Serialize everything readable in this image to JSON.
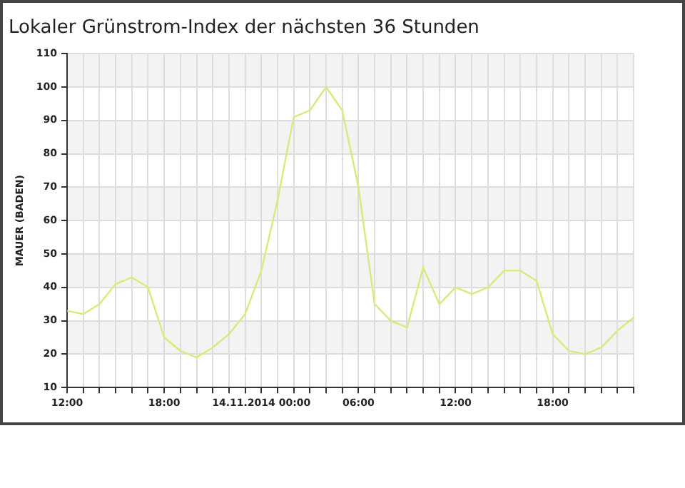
{
  "chart_data": {
    "type": "line",
    "title": "Lokaler Grünstrom-Index der nächsten 36 Stunden",
    "ylabel": "MAUER (BADEN)",
    "x": [
      "2014-11-13T12:00",
      "2014-11-13T13:00",
      "2014-11-13T14:00",
      "2014-11-13T15:00",
      "2014-11-13T16:00",
      "2014-11-13T17:00",
      "2014-11-13T18:00",
      "2014-11-13T19:00",
      "2014-11-13T20:00",
      "2014-11-13T21:00",
      "2014-11-13T22:00",
      "2014-11-13T23:00",
      "2014-11-14T00:00",
      "2014-11-14T01:00",
      "2014-11-14T02:00",
      "2014-11-14T03:00",
      "2014-11-14T04:00",
      "2014-11-14T05:00",
      "2014-11-14T06:00",
      "2014-11-14T07:00",
      "2014-11-14T08:00",
      "2014-11-14T09:00",
      "2014-11-14T10:00",
      "2014-11-14T11:00",
      "2014-11-14T12:00",
      "2014-11-14T13:00",
      "2014-11-14T14:00",
      "2014-11-14T15:00",
      "2014-11-14T16:00",
      "2014-11-14T17:00",
      "2014-11-14T18:00",
      "2014-11-14T19:00",
      "2014-11-14T20:00",
      "2014-11-14T21:00",
      "2014-11-14T22:00",
      "2014-11-14T23:00"
    ],
    "series": [
      {
        "color": "#d4ec7a",
        "values": [
          33,
          32,
          35,
          41,
          43,
          40,
          25,
          21,
          19,
          22,
          26,
          32,
          45,
          66,
          91,
          93,
          100,
          93,
          70,
          35,
          30,
          28,
          46,
          35,
          40,
          38,
          40,
          45,
          45,
          42,
          26,
          21,
          20,
          22,
          27,
          31
        ]
      }
    ],
    "xlim": [
      "2014-11-13T12:00",
      "2014-11-14T23:00"
    ],
    "xticks": [
      {
        "value": "2014-11-13T12:00",
        "label": "12:00"
      },
      {
        "value": "2014-11-13T13:00",
        "label": null
      },
      {
        "value": "2014-11-13T14:00",
        "label": null
      },
      {
        "value": "2014-11-13T15:00",
        "label": null
      },
      {
        "value": "2014-11-13T16:00",
        "label": null
      },
      {
        "value": "2014-11-13T17:00",
        "label": null
      },
      {
        "value": "2014-11-13T18:00",
        "label": "18:00"
      },
      {
        "value": "2014-11-13T19:00",
        "label": null
      },
      {
        "value": "2014-11-13T20:00",
        "label": null
      },
      {
        "value": "2014-11-13T21:00",
        "label": null
      },
      {
        "value": "2014-11-13T22:00",
        "label": null
      },
      {
        "value": "2014-11-13T23:00",
        "label": null
      },
      {
        "value": "2014-11-14T00:00",
        "label": "14.11.2014 00:00"
      },
      {
        "value": "2014-11-14T01:00",
        "label": null
      },
      {
        "value": "2014-11-14T02:00",
        "label": null
      },
      {
        "value": "2014-11-14T03:00",
        "label": null
      },
      {
        "value": "2014-11-14T04:00",
        "label": null
      },
      {
        "value": "2014-11-14T05:00",
        "label": null
      },
      {
        "value": "2014-11-14T06:00",
        "label": "06:00"
      },
      {
        "value": "2014-11-14T07:00",
        "label": null
      },
      {
        "value": "2014-11-14T08:00",
        "label": null
      },
      {
        "value": "2014-11-14T09:00",
        "label": null
      },
      {
        "value": "2014-11-14T10:00",
        "label": null
      },
      {
        "value": "2014-11-14T11:00",
        "label": null
      },
      {
        "value": "2014-11-14T12:00",
        "label": "12:00"
      },
      {
        "value": "2014-11-14T13:00",
        "label": null
      },
      {
        "value": "2014-11-14T14:00",
        "label": null
      },
      {
        "value": "2014-11-14T15:00",
        "label": null
      },
      {
        "value": "2014-11-14T16:00",
        "label": null
      },
      {
        "value": "2014-11-14T17:00",
        "label": null
      },
      {
        "value": "2014-11-14T18:00",
        "label": "18:00"
      },
      {
        "value": "2014-11-14T19:00",
        "label": null
      },
      {
        "value": "2014-11-14T20:00",
        "label": null
      },
      {
        "value": "2014-11-14T21:00",
        "label": null
      },
      {
        "value": "2014-11-14T22:00",
        "label": null
      },
      {
        "value": "2014-11-14T23:00",
        "label": null
      }
    ],
    "ylim": [
      10,
      110
    ],
    "yticks": [
      10,
      20,
      30,
      40,
      50,
      60,
      70,
      80,
      90,
      100,
      110
    ],
    "grid": true,
    "legend": false,
    "marker": "none",
    "line_style": "solid"
  }
}
